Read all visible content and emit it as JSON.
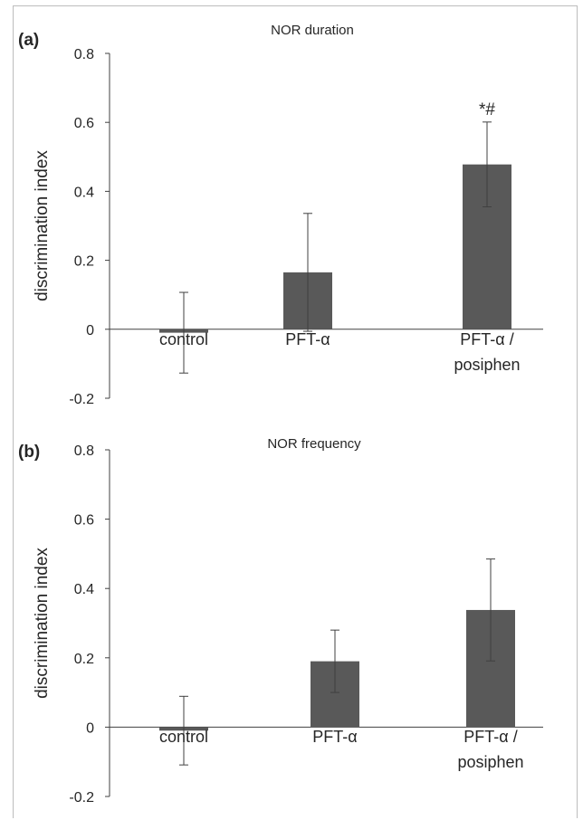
{
  "chart_data": [
    {
      "type": "bar",
      "panel": "(a)",
      "title": "NOR duration",
      "ylabel": "discrimination index",
      "xlabel": "",
      "categories": [
        "control",
        "PFT-α",
        "PFT-α / posiphen"
      ],
      "category_lines": [
        [
          "control"
        ],
        [
          "PFT-α"
        ],
        [
          "PFT-α /",
          "posiphen"
        ]
      ],
      "values": [
        -0.01,
        0.165,
        0.478
      ],
      "errors": [
        0.117,
        0.171,
        0.123
      ],
      "annotations": [
        "",
        "",
        "*#"
      ],
      "ylim": [
        -0.2,
        0.8
      ],
      "yticks": [
        "-0.2",
        "0",
        "0.2",
        "0.4",
        "0.6",
        "0.8"
      ],
      "bar_color": "#595959",
      "grid": false
    },
    {
      "type": "bar",
      "panel": "(b)",
      "title": "NOR frequency",
      "ylabel": "discrimination index",
      "xlabel": "",
      "categories": [
        "control",
        "PFT-α",
        "PFT-α / posiphen"
      ],
      "category_lines": [
        [
          "control"
        ],
        [
          "PFT-α"
        ],
        [
          "PFT-α /",
          "posiphen"
        ]
      ],
      "values": [
        -0.01,
        0.19,
        0.338
      ],
      "errors": [
        0.099,
        0.09,
        0.147
      ],
      "annotations": [
        "",
        "",
        ""
      ],
      "ylim": [
        -0.2,
        0.8
      ],
      "yticks": [
        "-0.2",
        "0",
        "0.2",
        "0.4",
        "0.6",
        "0.8"
      ],
      "bar_color": "#595959",
      "grid": false
    }
  ]
}
